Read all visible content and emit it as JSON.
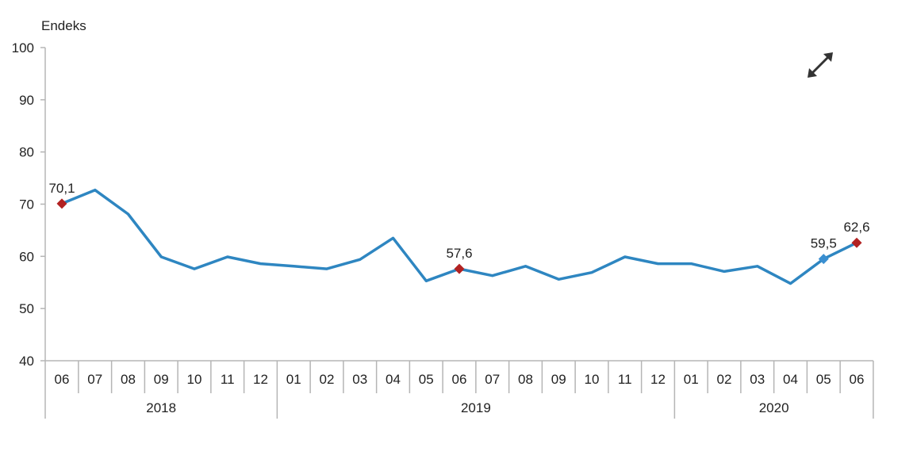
{
  "chart_data": {
    "type": "line",
    "ylabel": "Endeks",
    "ylim": [
      40,
      100
    ],
    "yticks": [
      "40",
      "50",
      "60",
      "70",
      "80",
      "90",
      "100"
    ],
    "categories": [
      "06",
      "07",
      "08",
      "09",
      "10",
      "11",
      "12",
      "01",
      "02",
      "03",
      "04",
      "05",
      "06",
      "07",
      "08",
      "09",
      "10",
      "11",
      "12",
      "01",
      "02",
      "03",
      "04",
      "05",
      "06"
    ],
    "years": [
      {
        "label": "2018",
        "first": 0,
        "last": 6
      },
      {
        "label": "2019",
        "first": 7,
        "last": 18
      },
      {
        "label": "2020",
        "first": 19,
        "last": 24
      }
    ],
    "series": [
      {
        "color": "#2e86c1",
        "values": [
          70.1,
          72.7,
          68.1,
          59.9,
          57.6,
          59.9,
          58.6,
          58.1,
          57.6,
          59.4,
          63.5,
          55.3,
          57.6,
          56.3,
          58.1,
          55.6,
          56.9,
          59.9,
          58.6,
          58.6,
          57.1,
          58.1,
          54.8,
          59.5,
          62.6
        ]
      }
    ],
    "highlights": [
      {
        "index": 0,
        "label": "70,1",
        "color": "#b22222"
      },
      {
        "index": 12,
        "label": "57,6",
        "color": "#b22222"
      },
      {
        "index": 23,
        "label": "59,5",
        "color": "#3a8fd1"
      },
      {
        "index": 24,
        "label": "62,6",
        "color": "#b22222"
      }
    ],
    "grid": false
  },
  "expand_icon": "expand-diagonal-arrows-icon"
}
